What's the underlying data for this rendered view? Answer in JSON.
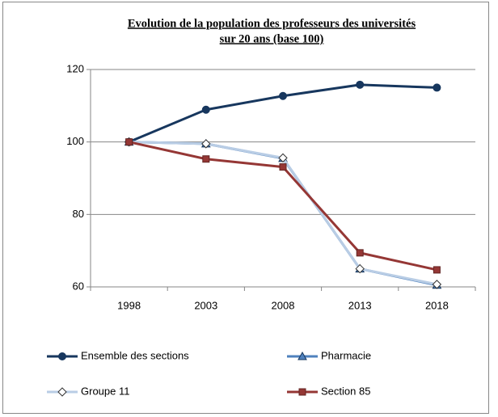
{
  "chart_data": {
    "type": "line",
    "title": [
      "Evolution de la population des professeurs des universités",
      "sur 20 ans (base 100)"
    ],
    "categories": [
      "1998",
      "2003",
      "2008",
      "2013",
      "2018"
    ],
    "series": [
      {
        "name": "Ensemble des sections",
        "color": "#17375e",
        "marker": "circle",
        "values": [
          100,
          108.9,
          112.7,
          115.8,
          115
        ]
      },
      {
        "name": "Pharmacie",
        "color": "#4f81bd",
        "marker": "triangle",
        "values": [
          100,
          99.5,
          95.5,
          65,
          60.5
        ]
      },
      {
        "name": "Groupe 11",
        "color": "#b9cde5",
        "marker": "diamond",
        "values": [
          100,
          99.5,
          95.6,
          65,
          60.7
        ]
      },
      {
        "name": "Section 85",
        "color": "#953735",
        "marker": "square",
        "values": [
          100,
          95.3,
          93.1,
          69.4,
          64.7
        ]
      }
    ],
    "ylim": [
      60,
      120
    ],
    "yticks": [
      60,
      80,
      100,
      120
    ],
    "grid": true,
    "legend": "bottom"
  }
}
